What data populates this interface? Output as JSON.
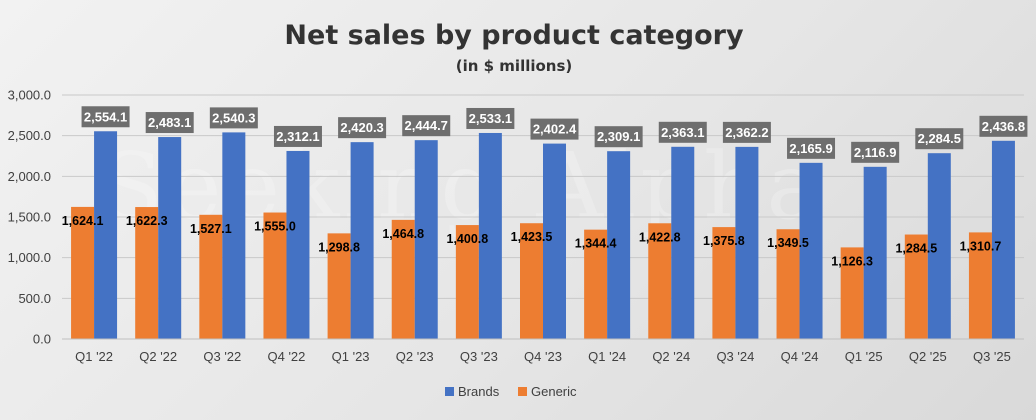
{
  "chart_data": {
    "type": "bar",
    "title": "Net sales by product category",
    "subtitle": "(in $ millions)",
    "watermark": "Seeking Alpha",
    "categories": [
      "Q1 '22",
      "Q2 '22",
      "Q3 '22",
      "Q4 '22",
      "Q1 '23",
      "Q2 '23",
      "Q3 '23",
      "Q4 '23",
      "Q1 '24",
      "Q2 '24",
      "Q3 '24",
      "Q4 '24",
      "Q1 '25",
      "Q2 '25",
      "Q3 '25"
    ],
    "series": [
      {
        "name": "Generic",
        "color": "#ed7d31",
        "values": [
          1624.1,
          1622.3,
          1527.1,
          1555.0,
          1298.8,
          1464.8,
          1400.8,
          1423.5,
          1344.4,
          1422.8,
          1375.8,
          1349.5,
          1126.3,
          1284.5,
          1310.7
        ],
        "labels": [
          "1,624.1",
          "1,622.3",
          "1,527.1",
          "1,555.0",
          "1,298.8",
          "1,464.8",
          "1,400.8",
          "1,423.5",
          "1,344.4",
          "1,422.8",
          "1,375.8",
          "1,349.5",
          "1,126.3",
          "1,284.5",
          "1,310.7"
        ]
      },
      {
        "name": "Brands",
        "color": "#4472c4",
        "values": [
          2554.1,
          2483.1,
          2540.3,
          2312.1,
          2420.3,
          2444.7,
          2533.1,
          2402.4,
          2309.1,
          2363.1,
          2362.2,
          2165.9,
          2116.9,
          2284.5,
          2436.8
        ],
        "labels": [
          "2,554.1",
          "2,483.1",
          "2,540.3",
          "2,312.1",
          "2,420.3",
          "2,444.7",
          "2,533.1",
          "2,402.4",
          "2,309.1",
          "2,363.1",
          "2,362.2",
          "2,165.9",
          "2,116.9",
          "2,284.5",
          "2,436.8"
        ]
      }
    ],
    "legend_order": [
      "Brands",
      "Generic"
    ],
    "legend_position": "bottom",
    "xlabel": "",
    "ylabel": "",
    "ylim": [
      0,
      3000
    ],
    "yticks": [
      0,
      500,
      1000,
      1500,
      2000,
      2500,
      3000
    ],
    "ytick_labels": [
      "0.0",
      "500.0",
      "1,000.0",
      "1,500.0",
      "2,000.0",
      "2,500.0",
      "3,000.0"
    ],
    "grid": true,
    "brand_label_bg": "#6e6e6e"
  }
}
